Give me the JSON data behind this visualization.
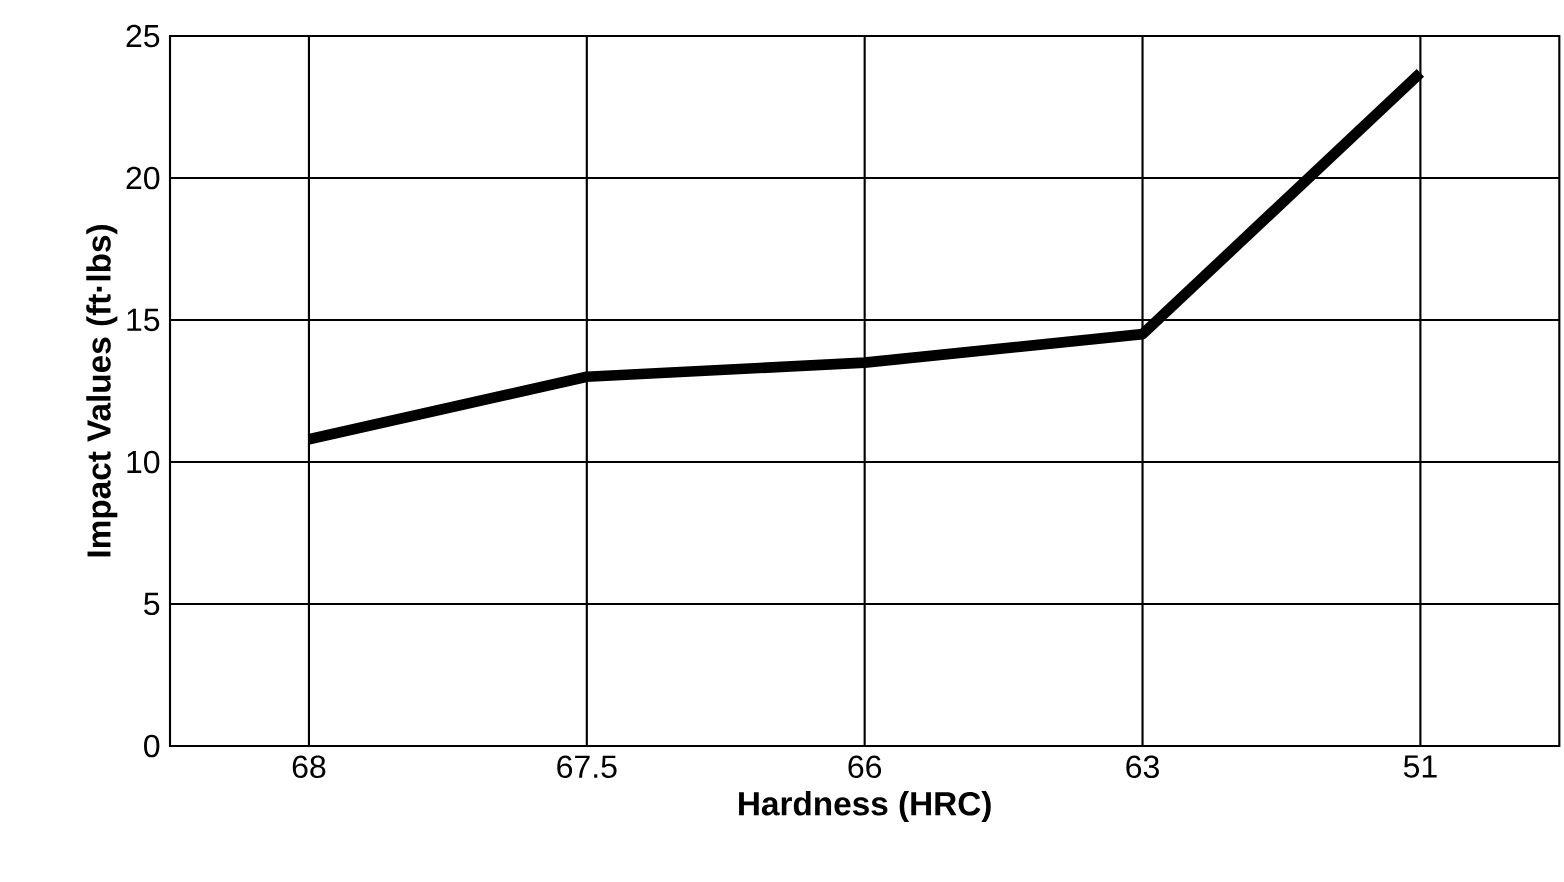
{
  "chart_data": {
    "type": "line",
    "xlabel": "Hardness (HRC)",
    "ylabel": "Impact Values (ft·lbs)",
    "categories": [
      "68",
      "67.5",
      "66",
      "63",
      "51"
    ],
    "series": [
      {
        "color": "#000000",
        "values": [
          10.8,
          13.0,
          13.5,
          14.5,
          23.7
        ]
      }
    ],
    "ylim": [
      0,
      25
    ],
    "yticks": [
      0,
      5,
      10,
      15,
      20,
      25
    ],
    "grid": true,
    "marker": "none",
    "line_style": "solid"
  }
}
